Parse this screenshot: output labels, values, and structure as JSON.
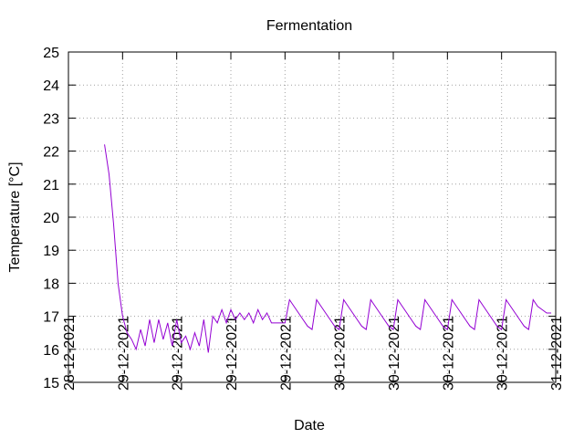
{
  "chart_data": {
    "type": "line",
    "title": "Fermentation",
    "x_label": "Date",
    "y_label": "Temperature [°C]",
    "x": [
      4,
      4.5,
      5,
      5.5,
      6,
      6.5,
      7,
      7.5,
      8,
      8.5,
      9,
      9.5,
      10,
      10.5,
      11,
      11.5,
      12,
      12.5,
      13,
      13.5,
      14,
      14.5,
      15,
      15.5,
      16,
      16.5,
      17,
      17.5,
      18,
      18.5,
      19,
      19.5,
      20,
      20.5,
      21,
      21.5,
      22,
      22.5,
      23,
      23.5,
      24,
      24.5,
      25,
      25.5,
      26,
      26.5,
      27,
      27.5,
      28,
      28.5,
      29,
      29.5,
      30,
      30.5,
      31,
      31.5,
      32,
      32.5,
      33,
      33.5,
      34,
      34.5,
      35,
      35.5,
      36,
      36.5,
      37,
      37.5,
      38,
      38.5,
      39,
      39.5,
      40,
      40.5,
      41,
      41.5,
      42,
      42.5,
      43,
      43.5,
      44,
      44.5,
      45,
      45.5,
      46,
      46.5,
      47,
      47.5,
      48,
      48.5,
      49,
      49.5,
      50,
      50.5,
      51,
      51.5,
      52,
      52.5,
      53,
      53.5
    ],
    "series": [
      {
        "color": "#9400d3",
        "values": [
          22.2,
          21.3,
          19.8,
          18.0,
          17.0,
          16.5,
          16.3,
          16.0,
          16.6,
          16.1,
          16.9,
          16.2,
          16.9,
          16.3,
          16.8,
          16.1,
          16.9,
          16.2,
          16.4,
          16.0,
          16.5,
          16.1,
          16.9,
          15.9,
          17.0,
          16.8,
          17.2,
          16.8,
          17.2,
          16.9,
          17.1,
          16.9,
          17.1,
          16.8,
          17.2,
          16.9,
          17.1,
          16.8,
          16.8,
          16.8,
          16.8,
          17.5,
          17.3,
          17.1,
          16.9,
          16.7,
          16.6,
          17.5,
          17.3,
          17.1,
          16.9,
          16.7,
          16.6,
          17.5,
          17.3,
          17.1,
          16.9,
          16.7,
          16.6,
          17.5,
          17.3,
          17.1,
          16.9,
          16.7,
          16.6,
          17.5,
          17.3,
          17.1,
          16.9,
          16.7,
          16.6,
          17.5,
          17.3,
          17.1,
          16.9,
          16.7,
          16.6,
          17.5,
          17.3,
          17.1,
          16.9,
          16.7,
          16.6,
          17.5,
          17.3,
          17.1,
          16.9,
          16.7,
          16.6,
          17.5,
          17.3,
          17.1,
          16.9,
          16.7,
          16.6,
          17.5,
          17.3,
          17.2,
          17.1,
          17.1
        ]
      }
    ],
    "xlim": [
      0,
      54
    ],
    "xticks": [
      {
        "value": 0,
        "label": "28-12-2021"
      },
      {
        "value": 6,
        "label": "29-12-2021"
      },
      {
        "value": 12,
        "label": "29-12-2021"
      },
      {
        "value": 18,
        "label": "29-12-2021"
      },
      {
        "value": 24,
        "label": "29-12-2021"
      },
      {
        "value": 30,
        "label": "30-12-2021"
      },
      {
        "value": 36,
        "label": "30-12-2021"
      },
      {
        "value": 42,
        "label": "30-12-2021"
      },
      {
        "value": 48,
        "label": "30-12-2021"
      },
      {
        "value": 54,
        "label": "31-12-2021"
      }
    ],
    "ylim": [
      15,
      25
    ],
    "yticks": [
      15,
      16,
      17,
      18,
      19,
      20,
      21,
      22,
      23,
      24,
      25
    ],
    "grid": true
  }
}
